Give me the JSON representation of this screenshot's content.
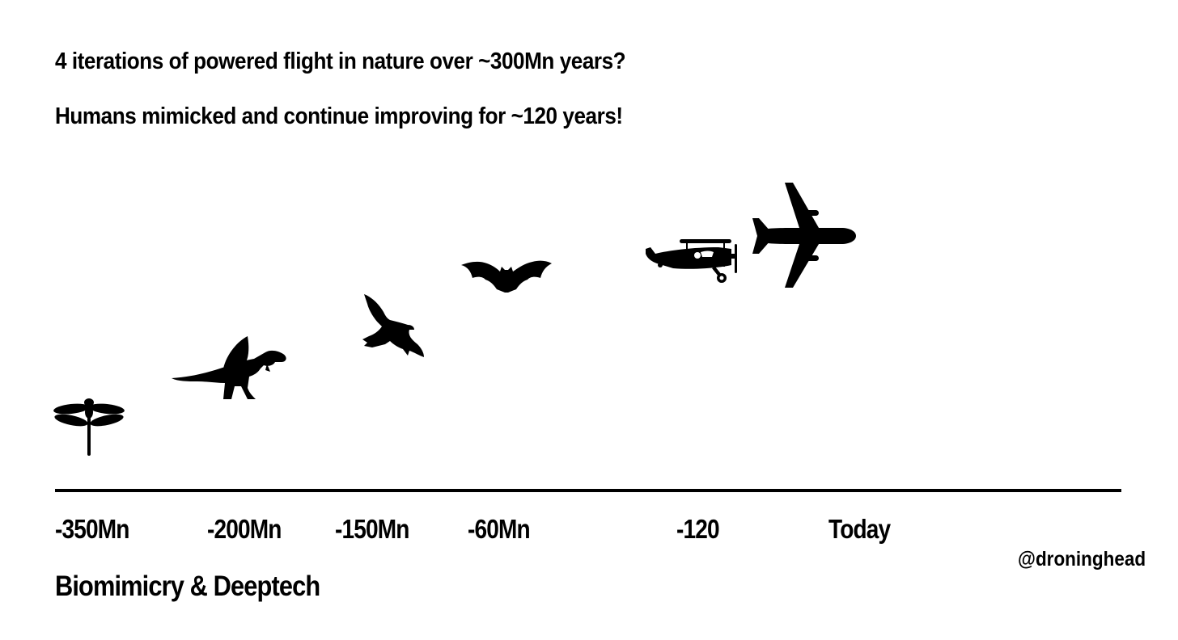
{
  "headline": {
    "line1": "4 iterations of powered flight in nature over ~300Mn years?",
    "line2": "Humans mimicked and continue improving for ~120 years!"
  },
  "timeline": {
    "ticks": [
      {
        "label": "-350Mn",
        "icon": "dragonfly-icon"
      },
      {
        "label": "-200Mn",
        "icon": "pterosaur-icon"
      },
      {
        "label": "-150Mn",
        "icon": "bird-icon"
      },
      {
        "label": "-60Mn",
        "icon": "bat-icon"
      },
      {
        "label": "-120",
        "icon": "biplane-icon"
      },
      {
        "label": "Today",
        "icon": "jet-airliner-icon"
      }
    ]
  },
  "footer": {
    "title": "Biomimicry & Deeptech",
    "handle": "@droninghead"
  },
  "colors": {
    "silhouette": "#000000",
    "background": "#ffffff"
  }
}
